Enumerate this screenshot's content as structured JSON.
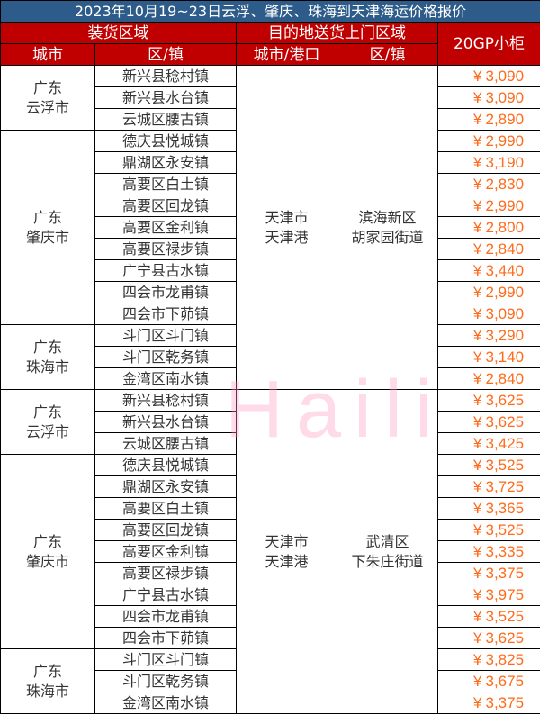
{
  "title": "2023年10月19~23日云浮、肇庆、珠海到天津海运价格报价",
  "headers": {
    "loading_area": "装货区域",
    "destination_area": "目的地送货上门区域",
    "price_20gp": "20GP小柜",
    "city": "城市",
    "town": "区/镇",
    "city_port": "城市/港口",
    "dest_town": "区/镇"
  },
  "currency_symbol": "¥",
  "watermark": "Haili",
  "colors": {
    "title_bg": "#2e5c8a",
    "header_bg": "#c00000",
    "price": "#ff6b1a"
  },
  "sections": [
    {
      "dest_city": "天津市\n天津港",
      "dest_town": "滨海新区\n胡家园街道",
      "groups": [
        {
          "city": "广东\n云浮市",
          "rows": [
            [
              "新兴县稔村镇",
              "3,090"
            ],
            [
              "新兴县水台镇",
              "3,090"
            ],
            [
              "云城区腰古镇",
              "2,890"
            ]
          ]
        },
        {
          "city": "广东\n肇庆市",
          "rows": [
            [
              "德庆县悦城镇",
              "2,990"
            ],
            [
              "鼎湖区永安镇",
              "3,190"
            ],
            [
              "高要区白土镇",
              "2,830"
            ],
            [
              "高要区回龙镇",
              "2,990"
            ],
            [
              "高要区金利镇",
              "2,800"
            ],
            [
              "高要区禄步镇",
              "2,840"
            ],
            [
              "广宁县古水镇",
              "3,440"
            ],
            [
              "四会市龙甫镇",
              "2,990"
            ],
            [
              "四会市下茆镇",
              "3,090"
            ]
          ]
        },
        {
          "city": "广东\n珠海市",
          "rows": [
            [
              "斗门区斗门镇",
              "3,290"
            ],
            [
              "斗门区乾务镇",
              "3,140"
            ],
            [
              "金湾区南水镇",
              "2,840"
            ]
          ]
        }
      ]
    },
    {
      "dest_city": "天津市\n天津港",
      "dest_town": "武清区\n下朱庄街道",
      "groups": [
        {
          "city": "广东\n云浮市",
          "rows": [
            [
              "新兴县稔村镇",
              "3,625"
            ],
            [
              "新兴县水台镇",
              "3,625"
            ],
            [
              "云城区腰古镇",
              "3,425"
            ]
          ]
        },
        {
          "city": "广东\n肇庆市",
          "rows": [
            [
              "德庆县悦城镇",
              "3,525"
            ],
            [
              "鼎湖区永安镇",
              "3,725"
            ],
            [
              "高要区白土镇",
              "3,365"
            ],
            [
              "高要区回龙镇",
              "3,525"
            ],
            [
              "高要区金利镇",
              "3,335"
            ],
            [
              "高要区禄步镇",
              "3,375"
            ],
            [
              "广宁县古水镇",
              "3,975"
            ],
            [
              "四会市龙甫镇",
              "3,525"
            ],
            [
              "四会市下茆镇",
              "3,625"
            ]
          ]
        },
        {
          "city": "广东\n珠海市",
          "rows": [
            [
              "斗门区斗门镇",
              "3,825"
            ],
            [
              "斗门区乾务镇",
              "3,675"
            ],
            [
              "金湾区南水镇",
              "3,375"
            ]
          ]
        }
      ]
    }
  ]
}
